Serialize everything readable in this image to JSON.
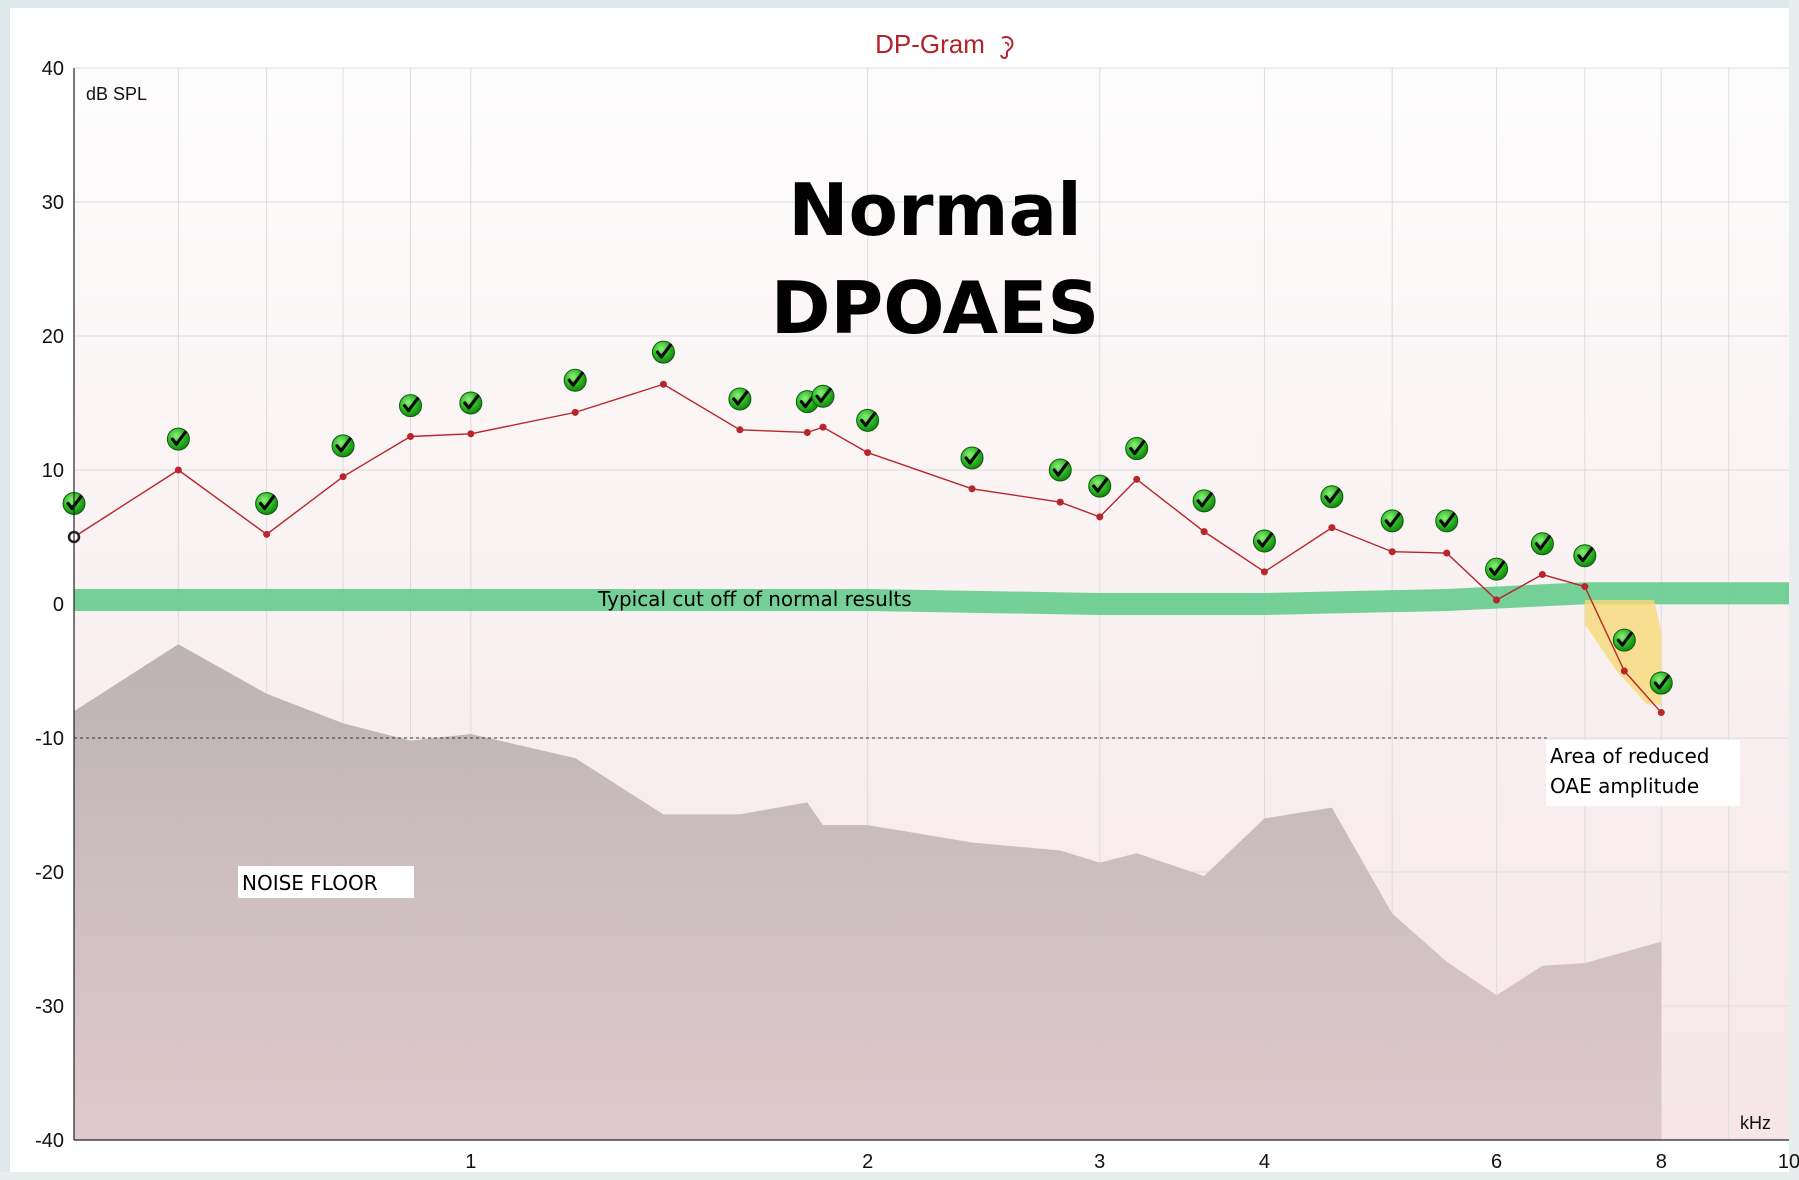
{
  "window": {
    "title": "DP-Gram",
    "ear_icon": "ear-icon",
    "colors": {
      "title": "#b3232b",
      "series_line": "#b7262a",
      "pass_check": "#1ea31e",
      "cutoff_band": "#66cc8e",
      "noise_floor": "#c2b8b8",
      "reduced_area": "#f7d978"
    }
  },
  "overlays": {
    "heading_line1": "Normal",
    "heading_line2": "DPOAES",
    "cutoff_label": "Typical cut off of normal results",
    "noise_floor_label": "NOISE FLOOR",
    "reduced_line1": "Area of reduced",
    "reduced_line2": "OAE amplitude"
  },
  "chart_data": {
    "type": "line",
    "title": "DP-Gram",
    "ylabel": "dB SPL",
    "xlabel": "kHz",
    "x_scale": "log",
    "xlim": [
      0.5,
      10
    ],
    "ylim": [
      -40,
      40
    ],
    "y_ticks": [
      -40,
      -30,
      -20,
      -10,
      0,
      10,
      20,
      30,
      40
    ],
    "x_ticks": [
      1,
      2,
      3,
      4,
      6,
      8,
      10
    ],
    "grid": true,
    "reference_line_y": -10,
    "cutoff_band": {
      "label": "Typical cut off of normal results",
      "x": [
        0.5,
        1.0,
        2.0,
        3.0,
        4.0,
        5.5,
        7.0,
        10
      ],
      "y": [
        0.3,
        0.3,
        0.3,
        0.0,
        0.0,
        0.3,
        0.8,
        0.8
      ]
    },
    "series": [
      {
        "name": "",
        "x": [
          0.5,
          0.6,
          0.7,
          0.8,
          0.9,
          1.0,
          1.2,
          1.4,
          1.6,
          1.8,
          1.85,
          2.0,
          2.4,
          2.8,
          3.0,
          3.2,
          3.6,
          4.0,
          4.5,
          5.0,
          5.5,
          6.0,
          6.5,
          7.0,
          7.5,
          8.0
        ],
        "y": [
          5.0,
          10.0,
          5.2,
          9.5,
          12.5,
          12.7,
          14.3,
          16.4,
          13.0,
          12.8,
          13.2,
          11.3,
          8.6,
          7.6,
          6.5,
          9.3,
          5.4,
          2.4,
          5.7,
          3.9,
          3.8,
          0.3,
          2.2,
          1.3,
          -5.0,
          -8.1
        ]
      }
    ],
    "pass_markers": {
      "x": [
        0.5,
        0.6,
        0.7,
        0.8,
        0.9,
        1.0,
        1.2,
        1.4,
        1.6,
        1.8,
        1.85,
        2.0,
        2.4,
        2.8,
        3.0,
        3.2,
        3.6,
        4.0,
        4.5,
        5.0,
        5.5,
        6.0,
        6.5,
        7.0,
        7.5,
        8.0
      ],
      "y": [
        7.5,
        12.3,
        7.5,
        11.8,
        14.8,
        15.0,
        16.7,
        18.8,
        15.3,
        15.1,
        15.5,
        13.7,
        10.9,
        10.0,
        8.8,
        11.6,
        7.7,
        4.7,
        8.0,
        6.2,
        6.2,
        2.6,
        4.5,
        3.6,
        -2.7,
        -5.9
      ]
    },
    "noise_floor": {
      "x": [
        0.5,
        0.6,
        0.7,
        0.8,
        0.9,
        1.0,
        1.2,
        1.4,
        1.6,
        1.8,
        1.85,
        2.0,
        2.4,
        2.8,
        3.0,
        3.2,
        3.6,
        4.0,
        4.5,
        5.0,
        5.5,
        6.0,
        6.5,
        7.0,
        8.0
      ],
      "y": [
        -8.0,
        -3.0,
        -6.7,
        -8.9,
        -10.2,
        -9.7,
        -11.5,
        -15.7,
        -15.7,
        -14.8,
        -16.5,
        -16.5,
        -17.8,
        -18.4,
        -19.3,
        -18.6,
        -20.3,
        -16.0,
        -15.2,
        -23.1,
        -26.7,
        -29.2,
        -27.0,
        -26.8,
        -25.2
      ]
    },
    "reduced_area": {
      "x": [
        7.0,
        7.4,
        7.8,
        8.0,
        8.0,
        7.9,
        7.0
      ],
      "y": [
        -1.5,
        -5.0,
        -7.5,
        -7.5,
        -2.0,
        0.3,
        0.3
      ]
    }
  }
}
